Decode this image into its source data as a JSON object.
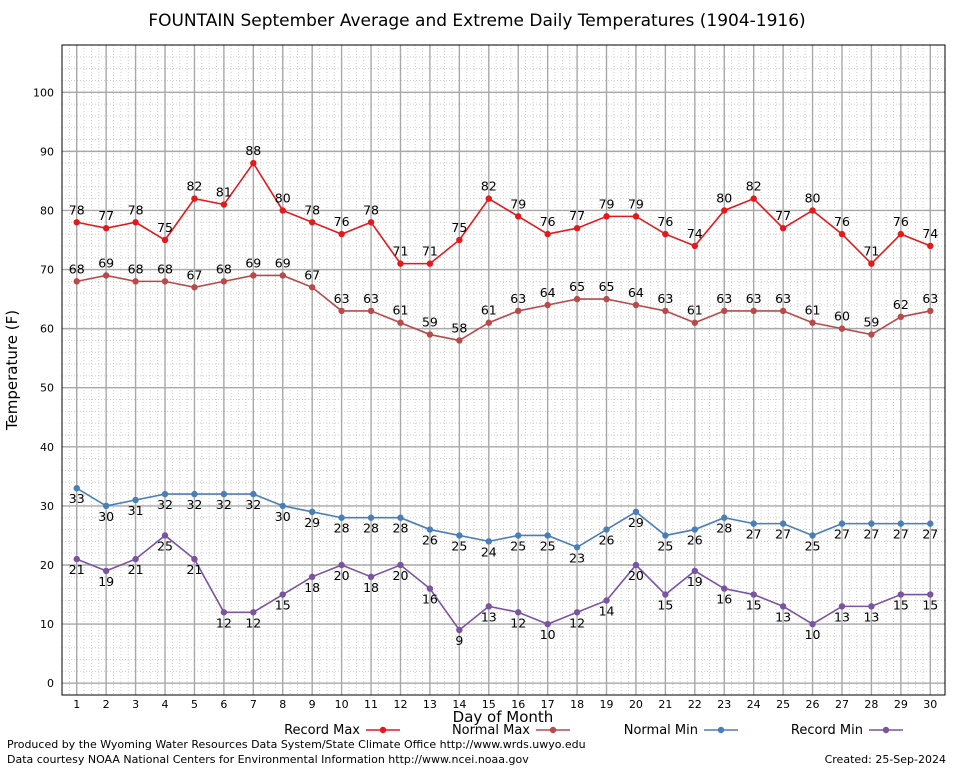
{
  "page": {
    "credit_line1": "Produced by the Wyoming Water Resources Data System/State Climate Office http://www.wrds.uwyo.edu",
    "credit_line2": "Data courtesy NOAA National Centers for Environmental Information http://www.ncei.noaa.gov",
    "created": "Created:  25-Sep-2024"
  },
  "chart_data": {
    "type": "line",
    "title": "FOUNTAIN September Average and Extreme Daily Temperatures (1904-1916)",
    "xlabel": "Day of Month",
    "ylabel": "Temperature (F)",
    "x": [
      1,
      2,
      3,
      4,
      5,
      6,
      7,
      8,
      9,
      10,
      11,
      12,
      13,
      14,
      15,
      16,
      17,
      18,
      19,
      20,
      21,
      22,
      23,
      24,
      25,
      26,
      27,
      28,
      29,
      30
    ],
    "xlim": [
      0.5,
      30.5
    ],
    "ylim": [
      -2,
      108
    ],
    "yticks": [
      0,
      10,
      20,
      30,
      40,
      50,
      60,
      70,
      80,
      90,
      100
    ],
    "grid": true,
    "legend_position": "bottom",
    "series": [
      {
        "name": "Record Max",
        "color": "#e31a1c",
        "label_pos": "above",
        "values": [
          78,
          77,
          78,
          75,
          82,
          81,
          88,
          80,
          78,
          76,
          78,
          71,
          71,
          75,
          82,
          79,
          76,
          77,
          79,
          79,
          76,
          74,
          80,
          82,
          77,
          80,
          76,
          71,
          76,
          74
        ]
      },
      {
        "name": "Normal Max",
        "color": "#b84a4a",
        "label_pos": "above",
        "values": [
          68,
          69,
          68,
          68,
          67,
          68,
          69,
          69,
          67,
          63,
          63,
          61,
          59,
          58,
          61,
          63,
          64,
          65,
          65,
          64,
          63,
          61,
          63,
          63,
          63,
          61,
          60,
          59,
          62,
          63
        ]
      },
      {
        "name": "Normal Min",
        "color": "#4a7eb8",
        "label_pos": "below",
        "values": [
          33,
          30,
          31,
          32,
          32,
          32,
          32,
          30,
          29,
          28,
          28,
          28,
          26,
          25,
          24,
          25,
          25,
          23,
          26,
          29,
          25,
          26,
          28,
          27,
          27,
          25,
          27,
          27,
          27,
          27
        ]
      },
      {
        "name": "Record Min",
        "color": "#7a54a0",
        "label_pos": "below",
        "values": [
          21,
          19,
          21,
          25,
          21,
          12,
          12,
          15,
          18,
          20,
          18,
          20,
          16,
          9,
          13,
          12,
          10,
          12,
          14,
          20,
          15,
          19,
          16,
          15,
          13,
          10,
          13,
          13,
          15,
          15
        ]
      }
    ]
  }
}
